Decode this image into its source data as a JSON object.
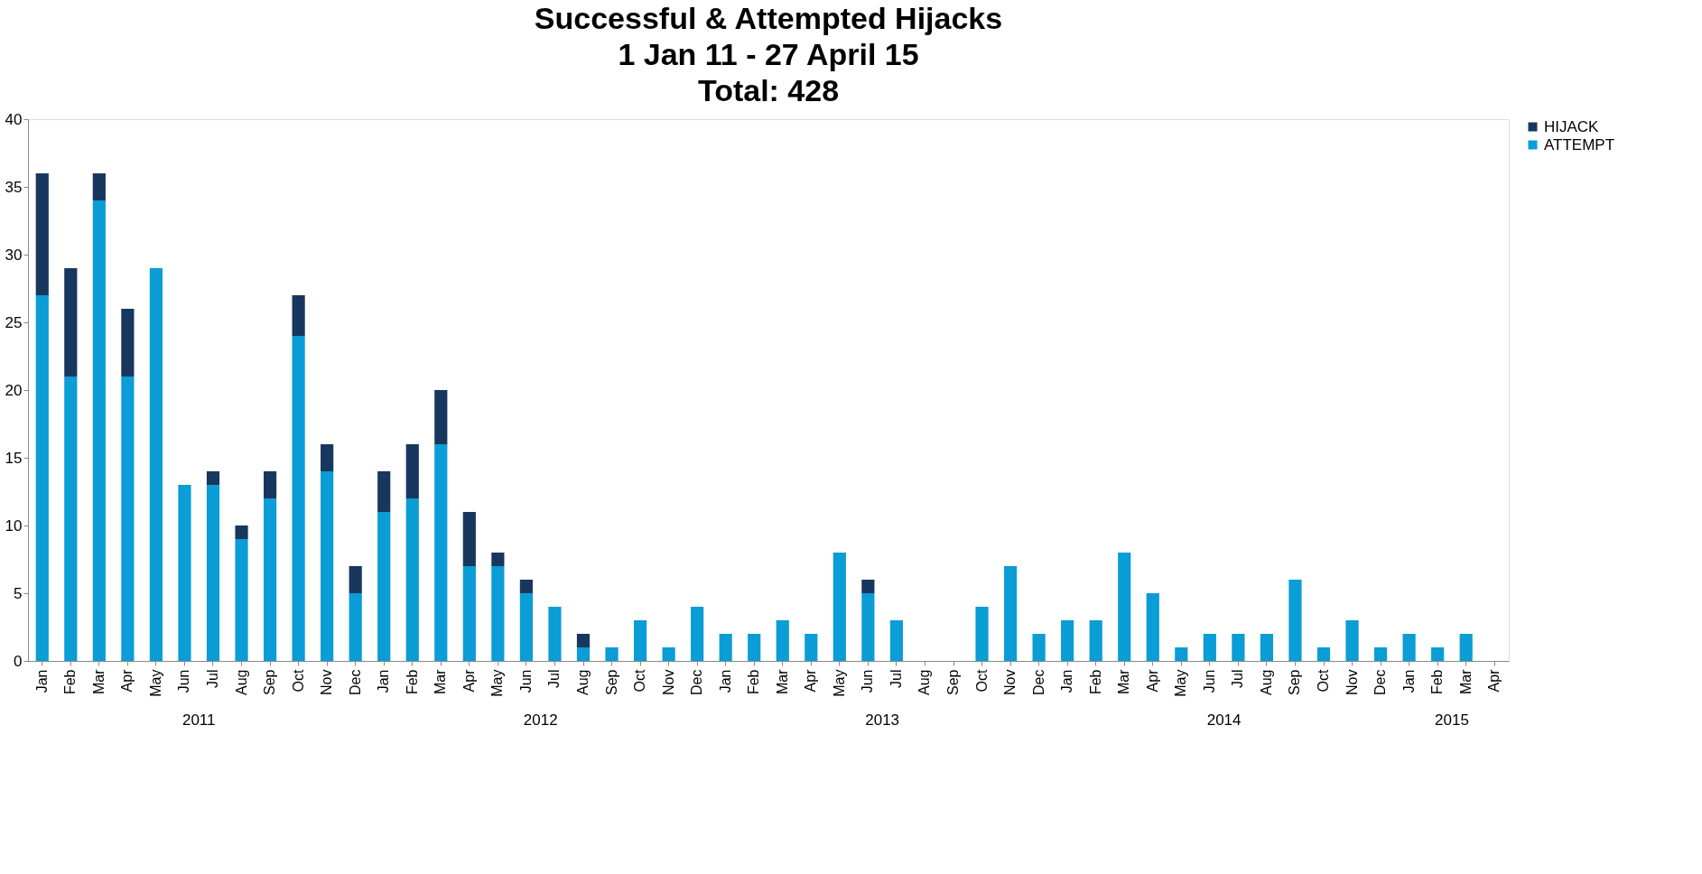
{
  "chart_data": {
    "type": "bar",
    "title": "Successful & Attempted Hijacks\n1 Jan 11 - 27 April 15\nTotal: 428",
    "stacked": true,
    "categories": [
      "Jan",
      "Feb",
      "Mar",
      "Apr",
      "May",
      "Jun",
      "Jul",
      "Aug",
      "Sep",
      "Oct",
      "Nov",
      "Dec",
      "Jan",
      "Feb",
      "Mar",
      "Apr",
      "May",
      "Jun",
      "Jul",
      "Aug",
      "Sep",
      "Oct",
      "Nov",
      "Dec",
      "Jan",
      "Feb",
      "Mar",
      "Apr",
      "May",
      "Jun",
      "Jul",
      "Aug",
      "Sep",
      "Oct",
      "Nov",
      "Dec",
      "Jan",
      "Feb",
      "Mar",
      "Apr",
      "May",
      "Jun",
      "Jul",
      "Aug",
      "Sep",
      "Oct",
      "Nov",
      "Dec",
      "Jan",
      "Feb",
      "Mar",
      "Apr"
    ],
    "series": [
      {
        "name": "ATTEMPT",
        "color": "#0a9dd6",
        "values": [
          27,
          21,
          34,
          21,
          29,
          13,
          13,
          9,
          12,
          24,
          14,
          5,
          11,
          12,
          16,
          7,
          7,
          5,
          4,
          1,
          1,
          3,
          1,
          4,
          2,
          2,
          3,
          2,
          8,
          5,
          3,
          0,
          0,
          4,
          7,
          2,
          3,
          3,
          8,
          5,
          1,
          2,
          2,
          2,
          6,
          1,
          3,
          1,
          2,
          1,
          2,
          0
        ]
      },
      {
        "name": "HIJACK",
        "color": "#17375e",
        "values": [
          9,
          8,
          2,
          5,
          0,
          0,
          1,
          1,
          2,
          3,
          2,
          2,
          3,
          4,
          4,
          4,
          1,
          1,
          0,
          1,
          0,
          0,
          0,
          0,
          0,
          0,
          0,
          0,
          0,
          1,
          0,
          0,
          0,
          0,
          0,
          0,
          0,
          0,
          0,
          0,
          0,
          0,
          0,
          0,
          0,
          0,
          0,
          0,
          0,
          0,
          0,
          0
        ]
      }
    ],
    "annotations": [
      "2011",
      "2012",
      "2013",
      "2014",
      "2015"
    ],
    "ylim": [
      0,
      40
    ],
    "yticks": [
      0,
      5,
      10,
      15,
      20,
      25,
      30,
      35,
      40
    ],
    "grid": false,
    "legend": "right"
  }
}
